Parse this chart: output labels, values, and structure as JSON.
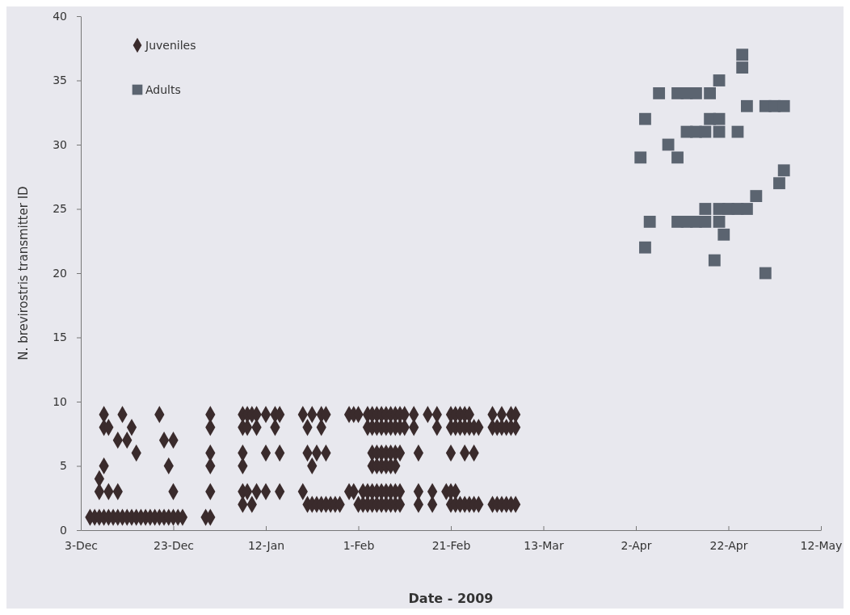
{
  "chart_data": {
    "type": "scatter",
    "xlabel": "Date - 2009",
    "ylabel": "N. brevirostris transmitter ID",
    "xlim": [
      "2008-12-03",
      "2009-05-12"
    ],
    "xticks": [
      {
        "value": "2008-12-03",
        "label": "3-Dec"
      },
      {
        "value": "2008-12-23",
        "label": "23-Dec"
      },
      {
        "value": "2009-01-12",
        "label": "12-Jan"
      },
      {
        "value": "2009-02-01",
        "label": "1-Feb"
      },
      {
        "value": "2009-02-21",
        "label": "21-Feb"
      },
      {
        "value": "2009-03-13",
        "label": "13-Mar"
      },
      {
        "value": "2009-04-02",
        "label": "2-Apr"
      },
      {
        "value": "2009-04-22",
        "label": "22-Apr"
      },
      {
        "value": "2009-05-12",
        "label": "12-May"
      }
    ],
    "ylim": [
      0,
      40
    ],
    "yticks": [
      0,
      5,
      10,
      15,
      20,
      25,
      30,
      35,
      40
    ],
    "grid": false,
    "legend": "top left",
    "series": [
      {
        "name": "Juveniles",
        "color": "#3a2b2c",
        "marker": "diamond",
        "x": [
          "2008-12-08",
          "2008-12-12",
          "2008-12-20",
          "2008-12-31",
          "2009-01-07",
          "2009-01-08",
          "2009-01-09",
          "2009-01-10",
          "2009-01-12",
          "2009-01-14",
          "2009-01-15",
          "2009-01-20",
          "2009-01-22",
          "2009-01-24",
          "2009-01-25",
          "2009-01-30",
          "2009-01-31",
          "2009-02-01",
          "2009-02-03",
          "2009-02-04",
          "2009-02-05",
          "2009-02-06",
          "2009-02-07",
          "2009-02-08",
          "2009-02-09",
          "2009-02-10",
          "2009-02-11",
          "2009-02-13",
          "2009-02-16",
          "2009-02-18",
          "2009-02-21",
          "2009-02-22",
          "2009-02-23",
          "2009-02-24",
          "2009-02-25",
          "2009-03-02",
          "2009-03-04",
          "2009-03-06",
          "2009-03-07",
          "2008-12-08",
          "2008-12-09",
          "2008-12-14",
          "2008-12-31",
          "2009-01-07",
          "2009-01-08",
          "2009-01-10",
          "2009-01-14",
          "2009-01-21",
          "2009-01-24",
          "2009-02-03",
          "2009-02-04",
          "2009-02-05",
          "2009-02-06",
          "2009-02-07",
          "2009-02-08",
          "2009-02-09",
          "2009-02-10",
          "2009-02-11",
          "2009-02-13",
          "2009-02-18",
          "2009-02-21",
          "2009-02-22",
          "2009-02-23",
          "2009-02-24",
          "2009-02-25",
          "2009-02-26",
          "2009-02-27",
          "2009-03-02",
          "2009-03-03",
          "2009-03-04",
          "2009-03-05",
          "2009-03-06",
          "2009-03-07",
          "2008-12-11",
          "2008-12-13",
          "2008-12-21",
          "2008-12-23",
          "2008-12-15",
          "2008-12-31",
          "2009-01-07",
          "2009-01-12",
          "2009-01-15",
          "2009-01-21",
          "2009-01-23",
          "2009-01-25",
          "2009-02-04",
          "2009-02-05",
          "2009-02-06",
          "2009-02-07",
          "2009-02-08",
          "2009-02-09",
          "2009-02-10",
          "2009-02-14",
          "2009-02-21",
          "2009-02-24",
          "2009-02-26",
          "2008-12-08",
          "2008-12-22",
          "2008-12-31",
          "2009-01-07",
          "2009-01-22",
          "2009-02-04",
          "2009-02-05",
          "2009-02-06",
          "2009-02-07",
          "2009-02-08",
          "2009-02-09",
          "2008-12-07",
          "2008-12-07",
          "2008-12-09",
          "2008-12-11",
          "2008-12-23",
          "2008-12-31",
          "2009-01-07",
          "2009-01-08",
          "2009-01-10",
          "2009-01-12",
          "2009-01-15",
          "2009-01-20",
          "2009-01-30",
          "2009-01-31",
          "2009-02-02",
          "2009-02-03",
          "2009-02-04",
          "2009-02-05",
          "2009-02-06",
          "2009-02-07",
          "2009-02-08",
          "2009-02-09",
          "2009-02-10",
          "2009-02-14",
          "2009-02-17",
          "2009-02-20",
          "2009-02-21",
          "2009-02-22",
          "2009-01-07",
          "2009-01-09",
          "2009-01-21",
          "2009-01-22",
          "2009-01-23",
          "2009-01-24",
          "2009-01-25",
          "2009-01-26",
          "2009-01-27",
          "2009-01-28",
          "2009-02-01",
          "2009-02-02",
          "2009-02-03",
          "2009-02-04",
          "2009-02-05",
          "2009-02-06",
          "2009-02-07",
          "2009-02-08",
          "2009-02-09",
          "2009-02-10",
          "2009-02-14",
          "2009-02-17",
          "2009-02-21",
          "2009-02-22",
          "2009-02-23",
          "2009-02-24",
          "2009-02-25",
          "2009-02-26",
          "2009-02-27",
          "2009-03-02",
          "2009-03-03",
          "2009-03-04",
          "2009-03-05",
          "2009-03-06",
          "2009-03-07",
          "2008-12-05",
          "2008-12-06",
          "2008-12-07",
          "2008-12-08",
          "2008-12-09",
          "2008-12-10",
          "2008-12-11",
          "2008-12-12",
          "2008-12-13",
          "2008-12-14",
          "2008-12-15",
          "2008-12-16",
          "2008-12-17",
          "2008-12-18",
          "2008-12-19",
          "2008-12-20",
          "2008-12-21",
          "2008-12-22",
          "2008-12-23",
          "2008-12-24",
          "2008-12-25",
          "2008-12-30",
          "2008-12-31"
        ],
        "values": [
          9,
          9,
          9,
          9,
          9,
          9,
          9,
          9,
          9,
          9,
          9,
          9,
          9,
          9,
          9,
          9,
          9,
          9,
          9,
          9,
          9,
          9,
          9,
          9,
          9,
          9,
          9,
          9,
          9,
          9,
          9,
          9,
          9,
          9,
          9,
          9,
          9,
          9,
          9,
          8,
          8,
          8,
          8,
          8,
          8,
          8,
          8,
          8,
          8,
          8,
          8,
          8,
          8,
          8,
          8,
          8,
          8,
          8,
          8,
          8,
          8,
          8,
          8,
          8,
          8,
          8,
          8,
          8,
          8,
          8,
          8,
          8,
          8,
          7,
          7,
          7,
          7,
          6,
          6,
          6,
          6,
          6,
          6,
          6,
          6,
          6,
          6,
          6,
          6,
          6,
          6,
          6,
          6,
          6,
          6,
          6,
          5,
          5,
          5,
          5,
          5,
          5,
          5,
          5,
          5,
          5,
          5,
          4,
          3,
          3,
          3,
          3,
          3,
          3,
          3,
          3,
          3,
          3,
          3,
          3,
          3,
          3,
          3,
          3,
          3,
          3,
          3,
          3,
          3,
          3,
          3,
          3,
          3,
          3,
          3,
          2,
          2,
          2,
          2,
          2,
          2,
          2,
          2,
          2,
          2,
          2,
          2,
          2,
          2,
          2,
          2,
          2,
          2,
          2,
          2,
          2,
          2,
          2,
          2,
          2,
          2,
          2,
          2,
          2,
          2,
          2,
          2,
          2,
          2,
          2,
          1,
          1,
          1,
          1,
          1,
          1,
          1,
          1,
          1,
          1,
          1,
          1,
          1,
          1,
          1,
          1,
          1,
          1,
          1,
          1,
          1,
          1,
          1
        ]
      },
      {
        "name": "Adults",
        "color": "#5b6470",
        "marker": "square",
        "x": [
          "2009-04-03",
          "2009-04-04",
          "2009-04-04",
          "2009-04-05",
          "2009-04-07",
          "2009-04-09",
          "2009-04-11",
          "2009-04-11",
          "2009-04-11",
          "2009-04-13",
          "2009-04-13",
          "2009-04-13",
          "2009-04-15",
          "2009-04-15",
          "2009-04-15",
          "2009-04-17",
          "2009-04-17",
          "2009-04-17",
          "2009-04-18",
          "2009-04-18",
          "2009-04-19",
          "2009-04-20",
          "2009-04-20",
          "2009-04-20",
          "2009-04-20",
          "2009-04-20",
          "2009-04-21",
          "2009-04-22",
          "2009-04-24",
          "2009-04-24",
          "2009-04-25",
          "2009-04-25",
          "2009-04-26",
          "2009-04-26",
          "2009-04-28",
          "2009-04-30",
          "2009-04-30",
          "2009-05-02",
          "2009-05-03",
          "2009-05-04",
          "2009-05-04"
        ],
        "values": [
          29,
          32,
          22,
          24,
          34,
          30,
          34,
          29,
          24,
          34,
          31,
          24,
          34,
          31,
          24,
          31,
          25,
          24,
          32,
          34,
          21,
          35,
          32,
          31,
          25,
          24,
          23,
          25,
          31,
          25,
          37,
          36,
          33,
          25,
          26,
          33,
          20,
          33,
          27,
          33,
          28
        ]
      }
    ]
  }
}
